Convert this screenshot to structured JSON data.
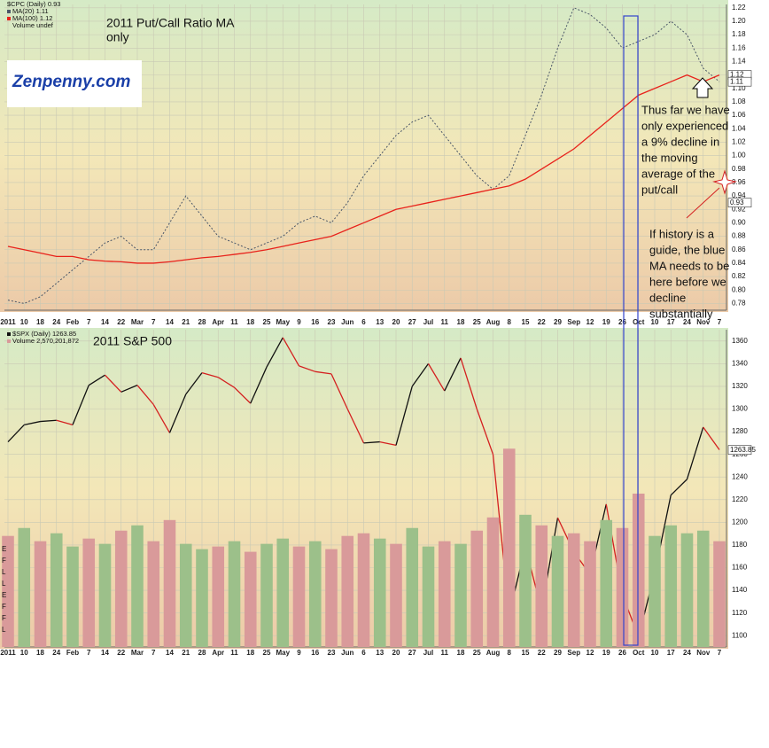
{
  "chart_data": [
    {
      "type": "line",
      "title": [
        "2011 Put/Call Ratio MA",
        "only"
      ],
      "legend_header": "$CPC (Daily) 0.93",
      "legend_footer": "Volume undef",
      "categories": [
        "2011",
        "10",
        "18",
        "24",
        "Feb",
        "7",
        "14",
        "22",
        "Mar",
        "7",
        "14",
        "21",
        "28",
        "Apr",
        "11",
        "18",
        "25",
        "May",
        "9",
        "16",
        "23",
        "Jun",
        "6",
        "13",
        "20",
        "27",
        "Jul",
        "11",
        "18",
        "25",
        "Aug",
        "8",
        "15",
        "22",
        "29",
        "Sep",
        "12",
        "19",
        "26",
        "Oct",
        "10",
        "17",
        "24",
        "Nov",
        "7"
      ],
      "series": [
        {
          "name": "MA(20) 1.11",
          "color": "#4a5668",
          "dash": true,
          "values": [
            0.785,
            0.78,
            0.79,
            0.81,
            0.83,
            0.85,
            0.87,
            0.88,
            0.86,
            0.86,
            0.9,
            0.94,
            0.91,
            0.88,
            0.87,
            0.86,
            0.87,
            0.88,
            0.9,
            0.91,
            0.9,
            0.93,
            0.97,
            1.0,
            1.03,
            1.05,
            1.06,
            1.03,
            1.0,
            0.97,
            0.95,
            0.97,
            1.03,
            1.09,
            1.16,
            1.22,
            1.21,
            1.19,
            1.16,
            1.17,
            1.18,
            1.2,
            1.18,
            1.13,
            1.11
          ]
        },
        {
          "name": "MA(100) 1.12",
          "color": "#e8221b",
          "values": [
            0.865,
            0.86,
            0.855,
            0.85,
            0.85,
            0.845,
            0.843,
            0.842,
            0.84,
            0.84,
            0.842,
            0.845,
            0.848,
            0.85,
            0.853,
            0.856,
            0.86,
            0.865,
            0.87,
            0.875,
            0.88,
            0.89,
            0.9,
            0.91,
            0.92,
            0.925,
            0.93,
            0.935,
            0.94,
            0.945,
            0.95,
            0.955,
            0.965,
            0.98,
            0.995,
            1.01,
            1.03,
            1.05,
            1.07,
            1.09,
            1.1,
            1.11,
            1.12,
            1.11,
            1.12
          ]
        }
      ],
      "ylim": [
        0.77,
        1.225
      ],
      "yticks": [
        0.78,
        {
          "value": 0.8,
          "label": "0.80"
        },
        0.82,
        0.84,
        0.86,
        0.88,
        {
          "value": 0.9,
          "label": "0.90"
        },
        0.92,
        0.94,
        0.96,
        0.98,
        {
          "value": 1,
          "label": "1.00"
        },
        1.02,
        1.04,
        1.06,
        1.08,
        {
          "value": 1.1,
          "label": "1.10"
        },
        1.12,
        1.14,
        1.16,
        1.18,
        {
          "value": 1.2,
          "label": "1.20"
        },
        1.22
      ],
      "grid": true,
      "price_tags": [
        {
          "value": 1.12,
          "label": "1.12"
        },
        {
          "value": 1.11,
          "label": "1.11"
        },
        {
          "value": 0.93,
          "label": "0.93"
        }
      ],
      "annotations": [
        [
          "Thus far we have",
          "only experienced",
          "a 9% decline in",
          "the moving",
          "average of the",
          "put/call"
        ],
        [
          "If history is a",
          "guide, the blue",
          "MA needs to be",
          "here before we",
          "decline",
          "substantially"
        ]
      ]
    },
    {
      "type": "price",
      "title": "2011 S&P 500",
      "categories": [
        "2011",
        "10",
        "18",
        "24",
        "Feb",
        "7",
        "14",
        "22",
        "Mar",
        "7",
        "14",
        "21",
        "28",
        "Apr",
        "11",
        "18",
        "25",
        "May",
        "9",
        "16",
        "23",
        "Jun",
        "6",
        "13",
        "20",
        "27",
        "Jul",
        "11",
        "18",
        "25",
        "Aug",
        "8",
        "15",
        "22",
        "29",
        "Sep",
        "12",
        "19",
        "26",
        "Oct",
        "10",
        "17",
        "24",
        "Nov",
        "7"
      ],
      "series": [
        {
          "name": "$SPX (Daily) 1263.85",
          "up_color": "#111111",
          "down_color": "#d42020",
          "values": [
            1271,
            1286,
            1289,
            1290,
            1286,
            1321,
            1330,
            1315,
            1321,
            1304,
            1279,
            1313,
            1332,
            1328,
            1319,
            1305,
            1337,
            1363,
            1338,
            1333,
            1331,
            1300,
            1270,
            1271,
            1268,
            1320,
            1340,
            1316,
            1345,
            1300,
            1260,
            1119,
            1178,
            1123,
            1204,
            1174,
            1154,
            1216,
            1136,
            1099,
            1155,
            1224,
            1238,
            1284,
            1264
          ]
        },
        {
          "name": "Volume 2,570,201,872",
          "type": "bar",
          "axis": "y2",
          "colors": [
            "#d99a9a",
            "#9cc08a",
            "#d99a9a",
            "#9cc08a",
            "#9cc08a",
            "#d99a9a",
            "#9cc08a",
            "#d99a9a",
            "#9cc08a",
            "#d99a9a",
            "#d99a9a",
            "#9cc08a",
            "#9cc08a",
            "#d99a9a",
            "#9cc08a",
            "#d99a9a",
            "#9cc08a",
            "#9cc08a",
            "#d99a9a",
            "#9cc08a",
            "#d99a9a",
            "#d99a9a",
            "#d99a9a",
            "#9cc08a",
            "#d99a9a",
            "#9cc08a",
            "#9cc08a",
            "#d99a9a",
            "#9cc08a",
            "#d99a9a",
            "#d99a9a",
            "#d99a9a",
            "#9cc08a",
            "#d99a9a",
            "#9cc08a",
            "#d99a9a",
            "#d99a9a",
            "#9cc08a",
            "#d99a9a",
            "#d99a9a",
            "#9cc08a",
            "#9cc08a",
            "#9cc08a",
            "#9cc08a",
            "#d99a9a"
          ],
          "values": [
            4200000000,
            4500000000,
            4000000000,
            4300000000,
            3800000000,
            4100000000,
            3900000000,
            4400000000,
            4600000000,
            4000000000,
            4800000000,
            3900000000,
            3700000000,
            3800000000,
            4000000000,
            3600000000,
            3900000000,
            4100000000,
            3800000000,
            4000000000,
            3700000000,
            4200000000,
            4300000000,
            4100000000,
            3900000000,
            4500000000,
            3800000000,
            4000000000,
            3900000000,
            4400000000,
            4900000000,
            7500000000,
            5000000000,
            4600000000,
            4200000000,
            4300000000,
            4000000000,
            4800000000,
            4500000000,
            5800000000,
            4200000000,
            4600000000,
            4300000000,
            4400000000,
            4000000000
          ]
        }
      ],
      "ylim": [
        1090,
        1370
      ],
      "yticks": [
        1100,
        1120,
        1140,
        1160,
        1180,
        1200,
        1220,
        1240,
        1260,
        1280,
        1300,
        1320,
        1340,
        1360
      ],
      "y2lim": [
        0,
        12000000000
      ],
      "grid": true,
      "price_tags": [
        {
          "value": 1263.85,
          "label": "1263.85"
        }
      ],
      "side_labels": [
        "E",
        "F",
        "L",
        "L",
        "E",
        "F",
        "F",
        "L"
      ]
    }
  ],
  "logo": "Zenpenny.com"
}
